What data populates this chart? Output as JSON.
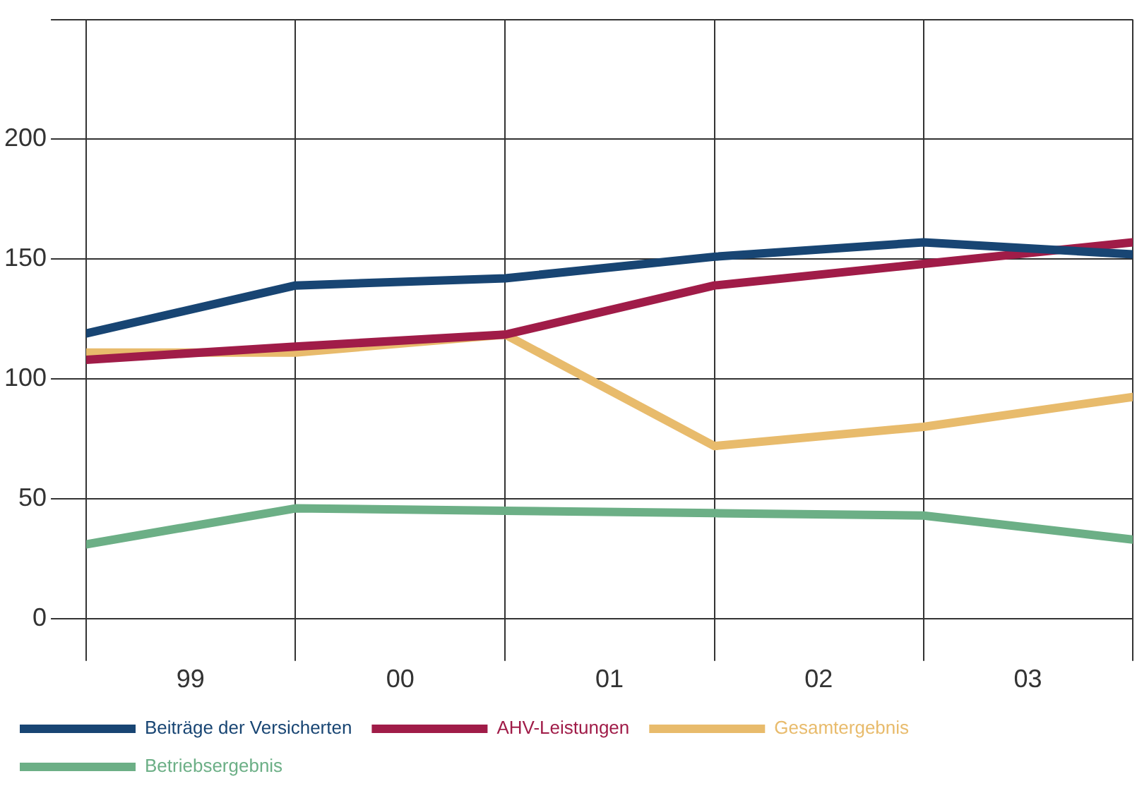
{
  "chart_data": {
    "type": "line",
    "x": [
      "1999-01-01",
      "2000-01-01",
      "2001-01-01",
      "2002-01-01",
      "2003-01-01",
      "2004-01-01"
    ],
    "xlim": [
      "1999-01-01",
      "2004-01-01"
    ],
    "xticks": [
      {
        "value": "1999-01-01",
        "label": null
      },
      {
        "value": "1999-07-02",
        "label": "99"
      },
      {
        "value": "2000-01-01",
        "label": null
      },
      {
        "value": "2000-07-02",
        "label": "00"
      },
      {
        "value": "2001-01-01",
        "label": null
      },
      {
        "value": "2001-07-02",
        "label": "01"
      },
      {
        "value": "2002-01-01",
        "label": null
      },
      {
        "value": "2002-07-02",
        "label": "02"
      },
      {
        "value": "2003-01-01",
        "label": null
      },
      {
        "value": "2003-07-02",
        "label": "03"
      },
      {
        "value": "2004-01-01",
        "label": null
      }
    ],
    "ylim": [
      0,
      250
    ],
    "yticks": [
      0,
      50,
      100,
      150,
      200,
      {
        "value": 250,
        "label": null
      }
    ],
    "grid": true,
    "legend": "bottom",
    "marker": "none",
    "line_style": "solid",
    "series": [
      {
        "name": "Beiträge der Versicherten",
        "color": "#184573",
        "values": [
          119,
          139,
          142,
          151,
          157,
          152
        ]
      },
      {
        "name": "AHV-Leistungen",
        "color": "#a01c48",
        "values": [
          108,
          113.5,
          118.5,
          139,
          148,
          157
        ]
      },
      {
        "name": "Gesamtergebnis",
        "color": "#e8bb6c",
        "values": [
          111,
          111,
          118.5,
          72,
          80,
          92.5
        ]
      },
      {
        "name": "Betriebsergebnis",
        "color": "#6caf86",
        "values": [
          31,
          46,
          45,
          44,
          43,
          33
        ]
      }
    ]
  }
}
